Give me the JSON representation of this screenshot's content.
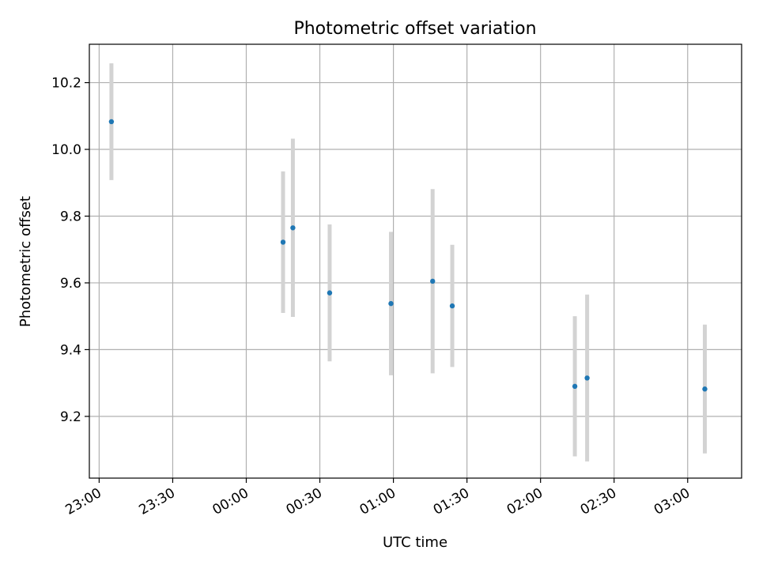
{
  "chart_data": {
    "type": "scatter",
    "title": "Photometric offset variation",
    "xlabel": "UTC time",
    "ylabel": "Photometric offset",
    "x_ticks": [
      "23:00",
      "23:30",
      "00:00",
      "00:30",
      "01:00",
      "01:30",
      "02:00",
      "02:30",
      "03:00"
    ],
    "y_ticks": [
      "9.2",
      "9.4",
      "9.6",
      "9.8",
      "10.0",
      "10.2"
    ],
    "xlim": [
      "22:56",
      "03:22"
    ],
    "ylim": [
      9.015,
      10.315
    ],
    "grid": true,
    "errorbar_color": "#d3d3d3",
    "point_color": "#1f77b4",
    "points": [
      {
        "x": "23:05",
        "y": 10.083,
        "err": 0.175
      },
      {
        "x": "00:15",
        "y": 9.722,
        "err": 0.212
      },
      {
        "x": "00:19",
        "y": 9.765,
        "err": 0.267
      },
      {
        "x": "00:34",
        "y": 9.57,
        "err": 0.205
      },
      {
        "x": "00:59",
        "y": 9.538,
        "err": 0.215
      },
      {
        "x": "01:16",
        "y": 9.605,
        "err": 0.276
      },
      {
        "x": "01:24",
        "y": 9.531,
        "err": 0.183
      },
      {
        "x": "02:14",
        "y": 9.29,
        "err": 0.21
      },
      {
        "x": "02:19",
        "y": 9.315,
        "err": 0.25
      },
      {
        "x": "03:07",
        "y": 9.282,
        "err": 0.193
      }
    ]
  }
}
